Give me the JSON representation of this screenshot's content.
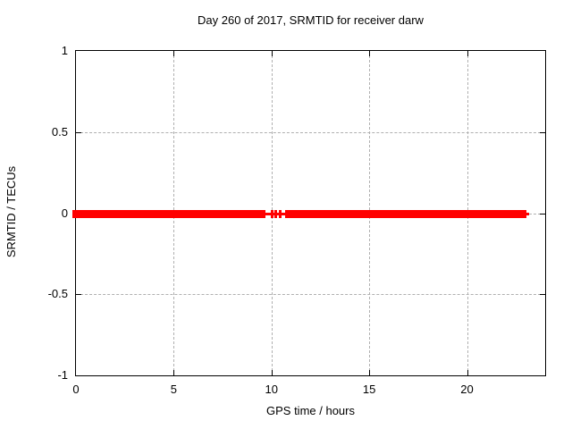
{
  "window_title": "Day 260 of 2017, SRMTID for receiver darw",
  "chart_data": {
    "type": "scatter",
    "title": "Day 260 of 2017, SRMTID for receiver darw",
    "xlabel": "GPS time / hours",
    "ylabel": "SRMTID / TECUs",
    "xlim": [
      0,
      24
    ],
    "ylim": [
      -1,
      1
    ],
    "xticks": [
      {
        "value": 0,
        "label": "0"
      },
      {
        "value": 5,
        "label": "5"
      },
      {
        "value": 10,
        "label": "10"
      },
      {
        "value": 15,
        "label": "15"
      },
      {
        "value": 20,
        "label": "20"
      }
    ],
    "yticks": [
      {
        "value": -1,
        "label": "-1"
      },
      {
        "value": -0.5,
        "label": "-0.5"
      },
      {
        "value": 0,
        "label": "0"
      },
      {
        "value": 0.5,
        "label": "0.5"
      },
      {
        "value": 1,
        "label": "1"
      }
    ],
    "grid": true,
    "legend": "none",
    "marker": "plus",
    "colors": {
      "series": "#ff0000",
      "grid": "#b0b0b0",
      "axis": "#000000",
      "text": "#000000"
    },
    "series": [
      {
        "name": "SRMTID",
        "y_value": 0,
        "segments_x_hours": [
          [
            0,
            8.09
          ],
          [
            8.18,
            8.73
          ],
          [
            8.87,
            9.38
          ],
          [
            10.97,
            22.86
          ]
        ],
        "isolated_x_hours": [
          9.6,
          10.01,
          10.19,
          10.42,
          10.74,
          22.97
        ]
      }
    ]
  }
}
